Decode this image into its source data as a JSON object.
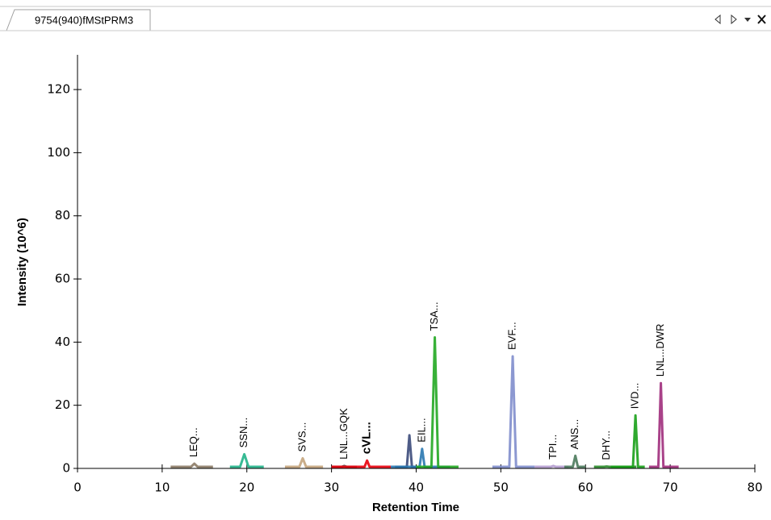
{
  "window": {
    "tab_title": "9754(940)fMStPRM3"
  },
  "chart_data": {
    "type": "line",
    "x_label": "Retention Time",
    "y_label": "Intensity (10^6)",
    "xlim": [
      0,
      80
    ],
    "xticks": [
      0,
      10,
      20,
      30,
      40,
      50,
      60,
      70,
      80
    ],
    "ylim": [
      0,
      131
    ],
    "yticks": [
      0,
      20,
      40,
      60,
      80,
      100,
      120
    ],
    "series": [
      {
        "name": "LEQ...",
        "color": "#8c7b66",
        "x": [
          11,
          13.4,
          13.8,
          14.2,
          16
        ],
        "values": [
          0.5,
          0.5,
          1.5,
          0.5,
          0.5
        ]
      },
      {
        "name": "SSN...",
        "color": "#22b388",
        "x": [
          18,
          19.2,
          19.7,
          20.2,
          22
        ],
        "values": [
          0.5,
          0.5,
          4.5,
          0.5,
          0.5
        ]
      },
      {
        "name": "SVS...",
        "color": "#c4a47c",
        "x": [
          24.5,
          26.2,
          26.6,
          27,
          29
        ],
        "values": [
          0.5,
          0.5,
          3.2,
          0.5,
          0.5
        ]
      },
      {
        "name": "LNL...GQK",
        "color": "#5a5a5a",
        "x": [
          30,
          31.2,
          31.5,
          31.8,
          33
        ],
        "values": [
          0.5,
          0.5,
          0.8,
          0.5,
          0.5
        ]
      },
      {
        "name": "cVL...",
        "color": "#e8000b",
        "label_bold": true,
        "x": [
          30,
          33.9,
          34.2,
          34.5,
          37
        ],
        "values": [
          0.5,
          0.5,
          2.5,
          0.5,
          0.5
        ]
      },
      {
        "name": null,
        "color": "#3b4a7a",
        "x": [
          37.5,
          38.9,
          39.2,
          39.5,
          40
        ],
        "values": [
          0.5,
          0.5,
          10.5,
          0.5,
          0.5
        ]
      },
      {
        "name": "EIL...",
        "color": "#2a78b0",
        "x": [
          37,
          40.4,
          40.7,
          41,
          44
        ],
        "values": [
          0.5,
          0.5,
          6.2,
          0.5,
          0.5
        ]
      },
      {
        "name": "TSA...",
        "color": "#22a822",
        "x": [
          40,
          41.8,
          42.2,
          42.6,
          45
        ],
        "values": [
          0.5,
          0.5,
          41.5,
          0.5,
          0.5
        ]
      },
      {
        "name": "EVF...",
        "color": "#7f8dcc",
        "x": [
          49,
          51,
          51.4,
          51.8,
          54
        ],
        "values": [
          0.5,
          0.5,
          35.5,
          0.5,
          0.5
        ]
      },
      {
        "name": "TPI...",
        "color": "#b49ccf",
        "x": [
          54,
          55.9,
          56.2,
          56.5,
          58
        ],
        "values": [
          0.5,
          0.5,
          0.8,
          0.5,
          0.5
        ]
      },
      {
        "name": "ANS...",
        "color": "#4b7a5c",
        "x": [
          57.5,
          58.5,
          58.8,
          59.1,
          60
        ],
        "values": [
          0.5,
          0.5,
          4,
          0.5,
          0.5
        ]
      },
      {
        "name": "DHY...",
        "color": "#2a8a2a",
        "x": [
          61,
          62.2,
          62.5,
          62.8,
          66
        ],
        "values": [
          0.5,
          0.5,
          0.6,
          0.5,
          0.5
        ]
      },
      {
        "name": "IVD...",
        "color": "#18a018",
        "x": [
          63,
          65.6,
          65.9,
          66.2,
          67
        ],
        "values": [
          0.5,
          0.5,
          16.8,
          0.5,
          0.5
        ]
      },
      {
        "name": "LNL...DWR",
        "color": "#a02e7c",
        "x": [
          67.5,
          68.6,
          68.9,
          69.2,
          71
        ],
        "values": [
          0.5,
          0.5,
          27,
          0.5,
          0.5
        ]
      }
    ]
  }
}
